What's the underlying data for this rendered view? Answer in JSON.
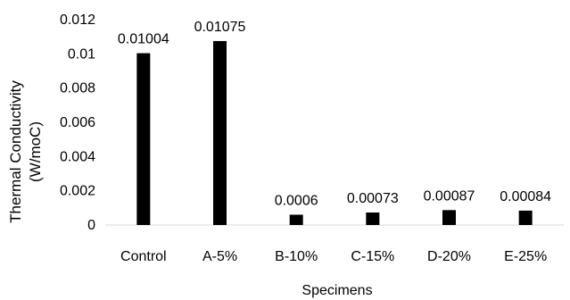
{
  "chart_data": {
    "type": "bar",
    "title": "",
    "xlabel": "Specimens",
    "ylabel_lines": [
      "Thermal Conductivity",
      "(W/moC)"
    ],
    "categories": [
      "Control",
      "A-5%",
      "B-10%",
      "C-15%",
      "D-20%",
      "E-25%"
    ],
    "values": [
      0.01004,
      0.01075,
      0.0006,
      0.00073,
      0.00087,
      0.00084
    ],
    "data_labels": [
      "0.01004",
      "0.01075",
      "0.0006",
      "0.00073",
      "0.00087",
      "0.00084"
    ],
    "ylim": [
      0,
      0.012
    ],
    "yticks": [
      "0",
      "0.002",
      "0.004",
      "0.006",
      "0.008",
      "0.01",
      "0.012"
    ],
    "bar_color": "#000000",
    "grid": false,
    "legend": "none"
  }
}
